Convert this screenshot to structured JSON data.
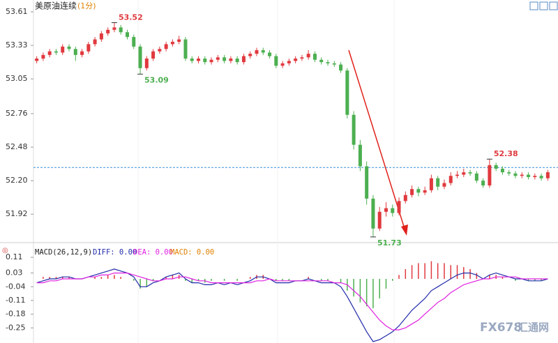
{
  "chart_data": [
    {
      "type": "candlestick",
      "title": "美原油连续",
      "subtitle": "(1分)",
      "up_color": "#e0393e",
      "down_color": "#4caf50",
      "ylim": [
        51.7,
        53.68
      ],
      "yticks": [
        53.61,
        53.33,
        53.05,
        52.76,
        52.48,
        {
          "value": 52.2,
          "label": "52.20"
        },
        51.92
      ],
      "ref_line": 52.31,
      "ref_color": "#3a8fd8",
      "extremes": [
        {
          "label": "53.52",
          "value": 53.52,
          "kind": "high",
          "color": "#e0393e"
        },
        {
          "label": "53.09",
          "value": 53.09,
          "kind": "low",
          "color": "#4caf50"
        },
        {
          "label": "51.73",
          "value": 51.73,
          "kind": "low",
          "color": "#4caf50"
        },
        {
          "label": "52.38",
          "value": 52.38,
          "kind": "high",
          "color": "#e0393e"
        }
      ],
      "candles": [
        [
          53.2,
          53.24,
          53.18,
          53.22
        ],
        [
          53.22,
          53.27,
          53.2,
          53.25
        ],
        [
          53.25,
          53.3,
          53.23,
          53.28
        ],
        [
          53.28,
          53.3,
          53.25,
          53.27
        ],
        [
          53.27,
          53.34,
          53.25,
          53.32
        ],
        [
          53.32,
          53.34,
          53.28,
          53.3
        ],
        [
          53.3,
          53.32,
          53.2,
          53.25
        ],
        [
          53.25,
          53.3,
          53.23,
          53.28
        ],
        [
          53.28,
          53.36,
          53.26,
          53.34
        ],
        [
          53.34,
          53.4,
          53.32,
          53.38
        ],
        [
          53.38,
          53.45,
          53.36,
          53.43
        ],
        [
          53.43,
          53.48,
          53.41,
          53.46
        ],
        [
          53.46,
          53.52,
          53.44,
          53.48
        ],
        [
          53.48,
          53.5,
          53.42,
          53.44
        ],
        [
          53.44,
          53.46,
          53.38,
          53.4
        ],
        [
          53.4,
          53.42,
          53.3,
          53.32
        ],
        [
          53.32,
          53.34,
          53.09,
          53.14
        ],
        [
          53.14,
          53.24,
          53.12,
          53.22
        ],
        [
          53.22,
          53.3,
          53.2,
          53.28
        ],
        [
          53.28,
          53.32,
          53.26,
          53.3
        ],
        [
          53.3,
          53.36,
          53.28,
          53.34
        ],
        [
          53.34,
          53.38,
          53.32,
          53.36
        ],
        [
          53.36,
          53.41,
          53.34,
          53.38
        ],
        [
          53.38,
          53.4,
          53.2,
          53.22
        ],
        [
          53.22,
          53.24,
          53.18,
          53.2
        ],
        [
          53.2,
          53.24,
          53.18,
          53.22
        ],
        [
          53.22,
          53.24,
          53.17,
          53.19
        ],
        [
          53.19,
          53.23,
          53.17,
          53.21
        ],
        [
          53.21,
          53.25,
          53.19,
          53.23
        ],
        [
          53.23,
          53.25,
          53.18,
          53.2
        ],
        [
          53.2,
          53.24,
          53.18,
          53.22
        ],
        [
          53.22,
          53.24,
          53.17,
          53.19
        ],
        [
          53.19,
          53.26,
          53.17,
          53.24
        ],
        [
          53.24,
          53.28,
          53.22,
          53.26
        ],
        [
          53.26,
          53.31,
          53.24,
          53.29
        ],
        [
          53.29,
          53.31,
          53.25,
          53.27
        ],
        [
          53.27,
          53.29,
          53.22,
          53.24
        ],
        [
          53.24,
          53.26,
          53.14,
          53.16
        ],
        [
          53.16,
          53.2,
          53.14,
          53.18
        ],
        [
          53.18,
          53.22,
          53.16,
          53.2
        ],
        [
          53.2,
          53.24,
          53.18,
          53.22
        ],
        [
          53.22,
          53.25,
          53.2,
          53.23
        ],
        [
          53.23,
          53.29,
          53.21,
          53.26
        ],
        [
          53.26,
          53.28,
          53.19,
          53.21
        ],
        [
          53.21,
          53.23,
          53.17,
          53.19
        ],
        [
          53.19,
          53.21,
          53.16,
          53.18
        ],
        [
          53.18,
          53.2,
          53.15,
          53.17
        ],
        [
          53.17,
          53.19,
          53.1,
          53.12
        ],
        [
          53.12,
          53.14,
          52.72,
          52.75
        ],
        [
          52.75,
          52.78,
          52.46,
          52.5
        ],
        [
          52.5,
          52.54,
          52.28,
          52.32
        ],
        [
          52.32,
          52.36,
          52.0,
          52.05
        ],
        [
          52.05,
          52.08,
          51.73,
          51.8
        ],
        [
          51.8,
          51.98,
          51.78,
          51.94
        ],
        [
          51.94,
          52.02,
          51.9,
          51.97
        ],
        [
          51.97,
          52.0,
          51.9,
          51.93
        ],
        [
          51.93,
          52.06,
          51.91,
          52.03
        ],
        [
          52.03,
          52.11,
          52.01,
          52.08
        ],
        [
          52.08,
          52.16,
          52.06,
          52.13
        ],
        [
          52.13,
          52.15,
          52.07,
          52.1
        ],
        [
          52.1,
          52.15,
          52.08,
          52.12
        ],
        [
          52.12,
          52.25,
          52.1,
          52.22
        ],
        [
          52.22,
          52.24,
          52.12,
          52.15
        ],
        [
          52.15,
          52.21,
          52.13,
          52.18
        ],
        [
          52.18,
          52.27,
          52.16,
          52.24
        ],
        [
          52.24,
          52.28,
          52.22,
          52.25
        ],
        [
          52.25,
          52.3,
          52.23,
          52.27
        ],
        [
          52.27,
          52.29,
          52.24,
          52.26
        ],
        [
          52.26,
          52.28,
          52.18,
          52.2
        ],
        [
          52.2,
          52.22,
          52.14,
          52.16
        ],
        [
          52.16,
          52.38,
          52.14,
          52.33
        ],
        [
          52.33,
          52.35,
          52.28,
          52.3
        ],
        [
          52.3,
          52.32,
          52.25,
          52.27
        ],
        [
          52.27,
          52.29,
          52.24,
          52.26
        ],
        [
          52.26,
          52.28,
          52.22,
          52.24
        ],
        [
          52.24,
          52.27,
          52.22,
          52.25
        ],
        [
          52.25,
          52.27,
          52.21,
          52.23
        ],
        [
          52.23,
          52.26,
          52.21,
          52.24
        ],
        [
          52.24,
          52.26,
          52.2,
          52.22
        ],
        [
          52.22,
          52.29,
          52.2,
          52.27
        ]
      ],
      "watermark": [
        "FX678",
        "汇通网"
      ]
    },
    {
      "type": "macd",
      "title": "MACD(26,12,9)",
      "ylim": [
        -0.32,
        0.16
      ],
      "yticks": [
        0.11,
        0.03,
        -0.04,
        -0.11,
        -0.18,
        -0.25
      ],
      "hist_name": "MACD: 0.00",
      "hist_name_color": "#e08000",
      "hist_up_color": "#e0393e",
      "hist_down_color": "#4caf50",
      "hist": [
        0.0,
        0.01,
        0.01,
        0.01,
        0.01,
        0.01,
        0.0,
        0.0,
        0.0,
        0.01,
        0.01,
        0.02,
        0.02,
        0.01,
        0.0,
        -0.01,
        -0.05,
        -0.04,
        -0.01,
        0.0,
        0.01,
        0.02,
        0.02,
        -0.01,
        -0.02,
        -0.01,
        -0.02,
        -0.01,
        0.0,
        -0.01,
        0.0,
        -0.01,
        0.0,
        0.01,
        0.02,
        0.02,
        0.0,
        -0.01,
        -0.01,
        -0.01,
        0.0,
        0.0,
        0.01,
        0.0,
        -0.01,
        -0.01,
        0.0,
        -0.02,
        -0.06,
        -0.09,
        -0.12,
        -0.14,
        -0.15,
        -0.1,
        -0.05,
        -0.01,
        0.02,
        0.05,
        0.07,
        0.08,
        0.08,
        0.09,
        0.08,
        0.08,
        0.07,
        0.07,
        0.06,
        0.05,
        0.03,
        0.0,
        0.02,
        0.02,
        0.01,
        0.0,
        -0.01,
        0.0,
        -0.01,
        -0.01,
        -0.01,
        0.0
      ],
      "series": [
        {
          "name": "DIFF: 0.00",
          "color": "#1f2aa8",
          "values": [
            -0.02,
            -0.01,
            0.0,
            0.0,
            0.01,
            0.01,
            0.0,
            0.0,
            0.01,
            0.02,
            0.03,
            0.04,
            0.05,
            0.04,
            0.03,
            0.01,
            -0.04,
            -0.04,
            -0.02,
            -0.01,
            0.01,
            0.02,
            0.03,
            0.0,
            -0.02,
            -0.02,
            -0.03,
            -0.03,
            -0.02,
            -0.03,
            -0.02,
            -0.03,
            -0.02,
            -0.01,
            0.01,
            0.01,
            0.0,
            -0.02,
            -0.02,
            -0.02,
            -0.01,
            -0.01,
            0.0,
            -0.01,
            -0.02,
            -0.02,
            -0.02,
            -0.04,
            -0.09,
            -0.15,
            -0.21,
            -0.27,
            -0.32,
            -0.31,
            -0.29,
            -0.27,
            -0.24,
            -0.2,
            -0.16,
            -0.13,
            -0.1,
            -0.06,
            -0.04,
            -0.02,
            0.0,
            0.02,
            0.03,
            0.03,
            0.02,
            0.0,
            0.02,
            0.03,
            0.02,
            0.01,
            0.0,
            0.0,
            -0.01,
            -0.01,
            -0.01,
            0.0
          ]
        },
        {
          "name": "DEA: 0.00",
          "color": "#e020e0",
          "values": [
            -0.02,
            -0.02,
            -0.01,
            -0.01,
            0.0,
            0.0,
            0.0,
            0.0,
            0.01,
            0.01,
            0.02,
            0.02,
            0.03,
            0.03,
            0.03,
            0.02,
            0.01,
            0.0,
            -0.01,
            -0.01,
            0.0,
            0.0,
            0.01,
            0.01,
            0.0,
            -0.01,
            -0.01,
            -0.02,
            -0.02,
            -0.02,
            -0.02,
            -0.02,
            -0.02,
            -0.02,
            -0.01,
            -0.01,
            0.0,
            -0.01,
            -0.01,
            -0.01,
            -0.01,
            -0.01,
            -0.01,
            -0.01,
            -0.01,
            -0.01,
            -0.02,
            -0.02,
            -0.03,
            -0.06,
            -0.09,
            -0.13,
            -0.17,
            -0.21,
            -0.24,
            -0.26,
            -0.26,
            -0.25,
            -0.23,
            -0.21,
            -0.18,
            -0.15,
            -0.12,
            -0.1,
            -0.07,
            -0.05,
            -0.03,
            -0.02,
            -0.01,
            0.0,
            0.0,
            0.01,
            0.01,
            0.01,
            0.01,
            0.0,
            0.0,
            0.0,
            0.0,
            0.0
          ]
        }
      ]
    }
  ]
}
